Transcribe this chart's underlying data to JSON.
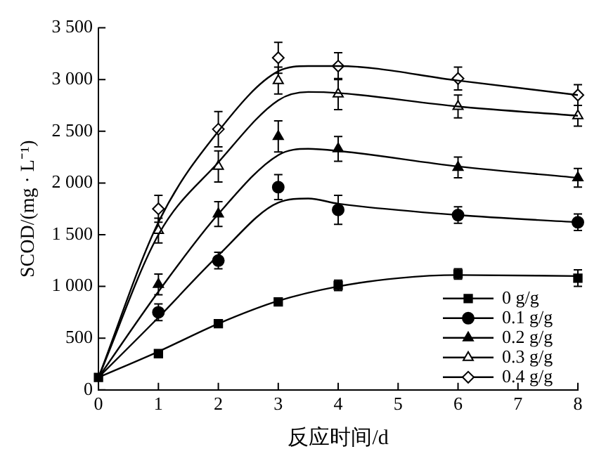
{
  "chart_data": {
    "type": "scatter",
    "xlabel": "反应时间/d",
    "ylabel": "SCOD/(mg · L⁻¹)",
    "xlim": [
      0,
      8
    ],
    "xticks": [
      0,
      1,
      2,
      3,
      4,
      5,
      6,
      7,
      8
    ],
    "ylim": [
      0,
      3500
    ],
    "yticks": [
      0,
      500,
      {
        "value": 1000,
        "label": "1 000"
      },
      {
        "value": 1500,
        "label": "1 500"
      },
      {
        "value": 2000,
        "label": "2 000"
      },
      {
        "value": 2500,
        "label": "2 500"
      },
      {
        "value": 3000,
        "label": "3 000"
      },
      {
        "value": 3500,
        "label": "3 500"
      }
    ],
    "grid": false,
    "legend": "bottom right",
    "series": [
      {
        "type": "line",
        "color": "#000000",
        "line_style": "solid",
        "marker": "none",
        "x": [
          0,
          1,
          2,
          3,
          4,
          5,
          6,
          8
        ],
        "values": [
          120,
          370,
          640,
          860,
          1000,
          1080,
          1110,
          1100
        ]
      },
      {
        "type": "line",
        "color": "#000000",
        "line_style": "solid",
        "marker": "none",
        "x": [
          0,
          1,
          2,
          3,
          3.5,
          4,
          6,
          8
        ],
        "values": [
          120,
          700,
          1300,
          1810,
          1850,
          1800,
          1690,
          1620
        ]
      },
      {
        "type": "line",
        "color": "#000000",
        "line_style": "solid",
        "marker": "none",
        "x": [
          0,
          1,
          2,
          3,
          3.5,
          4,
          6,
          8
        ],
        "values": [
          120,
          950,
          1700,
          2270,
          2330,
          2310,
          2160,
          2050
        ]
      },
      {
        "type": "line",
        "color": "#000000",
        "line_style": "solid",
        "marker": "none",
        "x": [
          0,
          1,
          2,
          3,
          3.5,
          4,
          6,
          8
        ],
        "values": [
          120,
          1500,
          2200,
          2800,
          2880,
          2870,
          2740,
          2650
        ]
      },
      {
        "type": "line",
        "color": "#000000",
        "line_style": "solid",
        "marker": "none",
        "x": [
          0,
          1,
          2,
          3,
          3.5,
          4,
          6,
          8
        ],
        "values": [
          120,
          1620,
          2500,
          3080,
          3130,
          3130,
          2990,
          2850
        ]
      },
      {
        "name": "0 g/g",
        "type": "scatter",
        "color": "#000000",
        "marker": "square",
        "x": [
          0,
          1,
          2,
          3,
          4,
          6,
          8
        ],
        "values": [
          120,
          350,
          640,
          850,
          1010,
          1120,
          1080
        ],
        "errors": [
          null,
          null,
          null,
          null,
          50,
          50,
          80
        ]
      },
      {
        "name": "0.1 g/g",
        "type": "scatter",
        "color": "#000000",
        "marker": "circle",
        "x": [
          1,
          2,
          3,
          4,
          6,
          8
        ],
        "values": [
          750,
          1250,
          1960,
          1740,
          1690,
          1620
        ],
        "errors": [
          80,
          80,
          120,
          140,
          80,
          80
        ]
      },
      {
        "name": "0.2 g/g",
        "type": "scatter",
        "color": "#000000",
        "marker": "triangle",
        "x": [
          1,
          2,
          3,
          4,
          6,
          8
        ],
        "values": [
          1020,
          1700,
          2450,
          2330,
          2150,
          2050
        ],
        "errors": [
          100,
          120,
          150,
          120,
          100,
          90
        ]
      },
      {
        "name": "0.3 g/g",
        "type": "scatter",
        "color": "#ffffff",
        "marker": "triangle",
        "x": [
          1,
          2,
          3,
          4,
          6,
          8
        ],
        "values": [
          1540,
          2160,
          2990,
          2860,
          2740,
          2650
        ],
        "errors": [
          120,
          150,
          130,
          150,
          110,
          100
        ]
      },
      {
        "name": "0.4 g/g",
        "type": "scatter",
        "color": "#ffffff",
        "marker": "diamond",
        "x": [
          1,
          2,
          3,
          4,
          6,
          8
        ],
        "values": [
          1750,
          2520,
          3210,
          3130,
          3010,
          2850
        ],
        "errors": [
          130,
          170,
          150,
          130,
          110,
          100
        ]
      }
    ]
  }
}
